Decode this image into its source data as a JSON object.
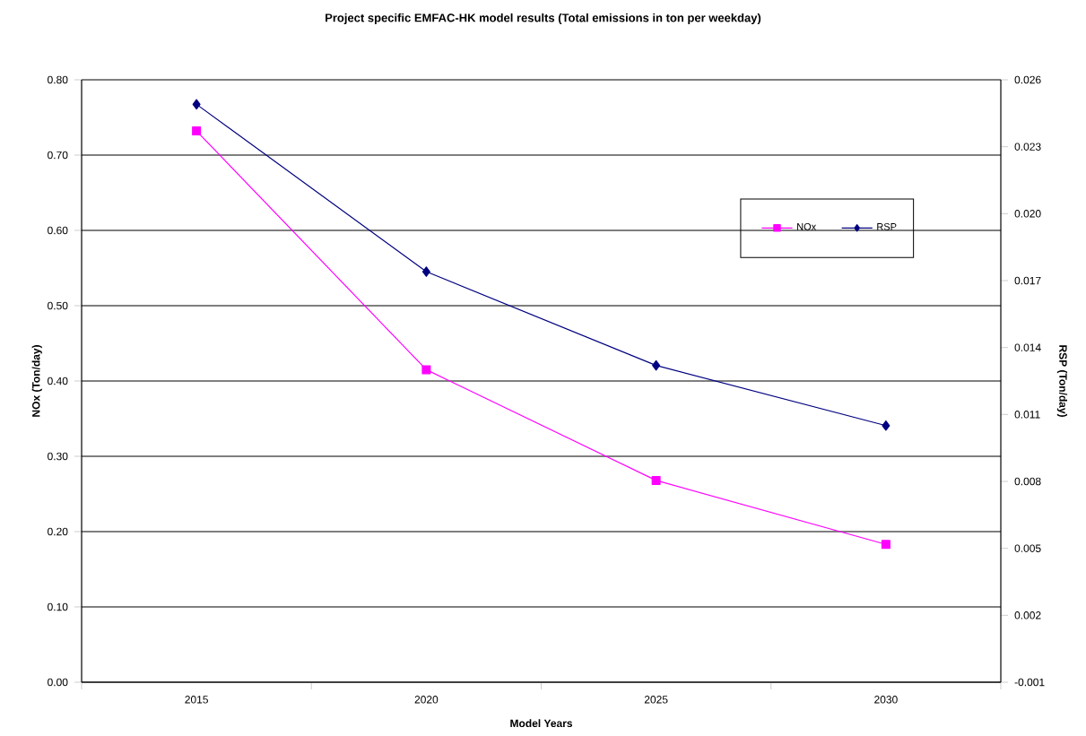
{
  "chart_data": {
    "type": "line",
    "title": "Project specific EMFAC-HK model results (Total emissions in ton per weekday)",
    "xlabel": "Model Years",
    "ylabel": "NOx (Ton/day)",
    "y2label": "RSP (Ton/day)",
    "categories": [
      "2015",
      "2020",
      "2025",
      "2030"
    ],
    "series": [
      {
        "name": "NOx",
        "color": "#ff00ff",
        "marker": "square",
        "values": [
          0.732,
          0.415,
          0.268,
          0.183
        ]
      },
      {
        "name": "RSP",
        "color": "#000080",
        "marker": "diamond",
        "axis": "y2",
        "values": [
          0.0249,
          0.0174,
          0.0132,
          0.0105
        ]
      }
    ],
    "ylim": [
      0,
      0.8
    ],
    "yticks": [
      {
        "value": 0,
        "label": "0.00"
      },
      {
        "value": 0.1,
        "label": "0.10"
      },
      {
        "value": 0.2,
        "label": "0.20"
      },
      {
        "value": 0.3,
        "label": "0.30"
      },
      {
        "value": 0.4,
        "label": "0.40"
      },
      {
        "value": 0.5,
        "label": "0.50"
      },
      {
        "value": 0.6,
        "label": "0.60"
      },
      {
        "value": 0.7,
        "label": "0.70"
      },
      {
        "value": 0.8,
        "label": "0.80"
      }
    ],
    "y2lim": [
      -0.001,
      0.026
    ],
    "y2ticks": [
      {
        "value": -0.001,
        "label": "-0.001"
      },
      {
        "value": 0.002,
        "label": "0.002"
      },
      {
        "value": 0.005,
        "label": "0.005"
      },
      {
        "value": 0.008,
        "label": "0.008"
      },
      {
        "value": 0.011,
        "label": "0.011"
      },
      {
        "value": 0.014,
        "label": "0.014"
      },
      {
        "value": 0.017,
        "label": "0.017"
      },
      {
        "value": 0.02,
        "label": "0.020"
      },
      {
        "value": 0.023,
        "label": "0.023"
      },
      {
        "value": 0.026,
        "label": "0.026"
      }
    ],
    "grid": "y",
    "legend": "top right"
  }
}
